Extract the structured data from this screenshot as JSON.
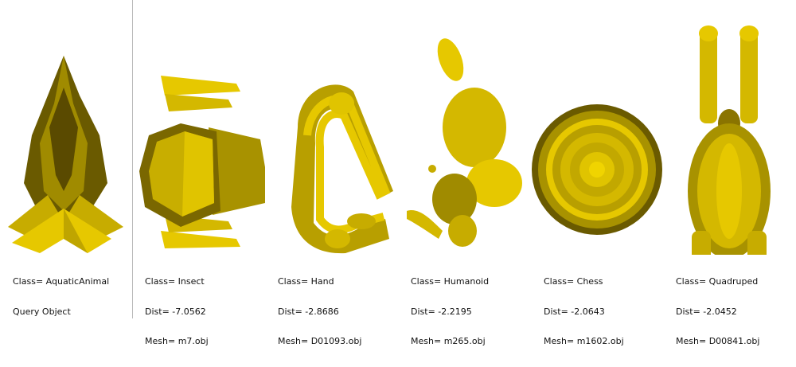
{
  "query": {
    "class_label": "Class=",
    "class_value": "AquaticAnimal",
    "query_label": "Query Object"
  },
  "results": [
    {
      "class": "Insect",
      "dist": "-7.0562",
      "mesh": "m7.obj"
    },
    {
      "class": "Hand",
      "dist": "-2.8686",
      "mesh": "D01093.obj"
    },
    {
      "class": "Humanoid",
      "dist": "-2.2195",
      "mesh": "m265.obj"
    },
    {
      "class": "Chess",
      "dist": "-2.0643",
      "mesh": "m1602.obj"
    },
    {
      "class": "Quadruped",
      "dist": "-2.0452",
      "mesh": "D00841.obj"
    }
  ],
  "labels": {
    "class": "Class=",
    "dist": "Dist=",
    "mesh": "Mesh="
  },
  "colors": {
    "mesh_yellow": "#e6c800",
    "mesh_dark": "#5a4a00",
    "divider": "#b9b9b9"
  }
}
